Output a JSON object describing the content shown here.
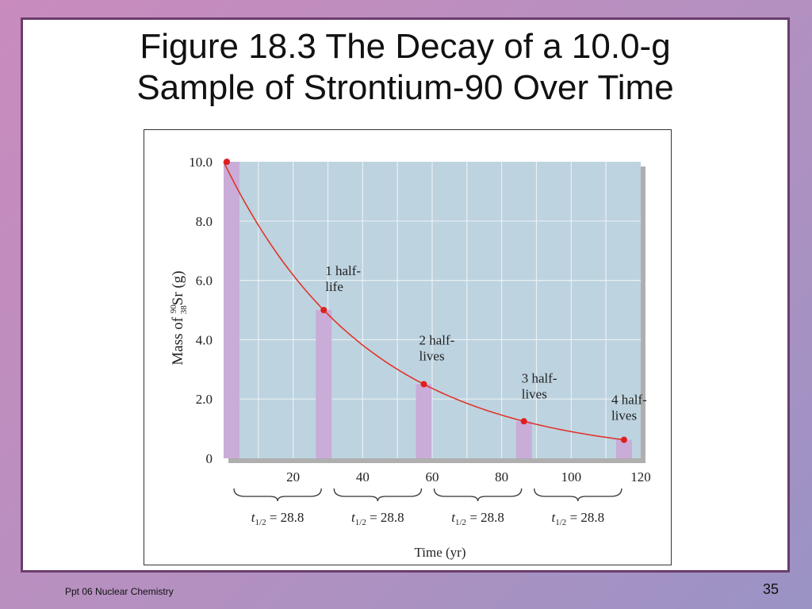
{
  "slide": {
    "title_line1": "Figure 18.3  The Decay of a 10.0-g",
    "title_line2": "Sample of Strontium-90 Over Time",
    "footer_left": "Ppt 06 Nuclear Chemistry",
    "page_number": "35"
  },
  "chart_data": {
    "type": "bar",
    "xlabel": "Time (yr)",
    "ylabel_prefix": "Mass of ",
    "ylabel_mass_number": "90",
    "ylabel_atomic_number": "38",
    "ylabel_suffix": "Sr (g)",
    "xlim": [
      0,
      120
    ],
    "ylim": [
      0,
      10.0
    ],
    "x_ticks": [
      20,
      40,
      60,
      80,
      100,
      120
    ],
    "x_tick_labels": [
      "20",
      "40",
      "60",
      "80",
      "100",
      "120"
    ],
    "y_ticks": [
      0,
      2.0,
      4.0,
      6.0,
      8.0,
      10.0
    ],
    "y_tick_labels": [
      "0",
      "2.0",
      "4.0",
      "6.0",
      "8.0",
      "10.0"
    ],
    "grid": true,
    "bars": [
      {
        "x": 0,
        "value": 10.0,
        "label": ""
      },
      {
        "x": 28.8,
        "value": 5.0,
        "label": "1 half-\nlife"
      },
      {
        "x": 57.6,
        "value": 2.5,
        "label": "2 half-\nlives"
      },
      {
        "x": 86.4,
        "value": 1.25,
        "label": "3 half-\nlives"
      },
      {
        "x": 115.2,
        "value": 0.625,
        "label": "4 half-\nlives"
      }
    ],
    "curve": {
      "initial_mass": 10.0,
      "half_life": 28.8
    },
    "braces": [
      {
        "from": 0,
        "to": 28.8,
        "label_base": "t",
        "label_sub": "1/2",
        "label_rest": " = 28.8"
      },
      {
        "from": 28.8,
        "to": 57.6,
        "label_base": "t",
        "label_sub": "1/2",
        "label_rest": " = 28.8"
      },
      {
        "from": 57.6,
        "to": 86.4,
        "label_base": "t",
        "label_sub": "1/2",
        "label_rest": " = 28.8"
      },
      {
        "from": 86.4,
        "to": 115.2,
        "label_base": "t",
        "label_sub": "1/2",
        "label_rest": " = 28.8"
      }
    ],
    "colors": {
      "plot_bg": "#bdd3df",
      "bar": "#c9acd8",
      "curve": "#e0352a",
      "point": "#e01e1e",
      "grid": "#e8f0f4"
    }
  }
}
